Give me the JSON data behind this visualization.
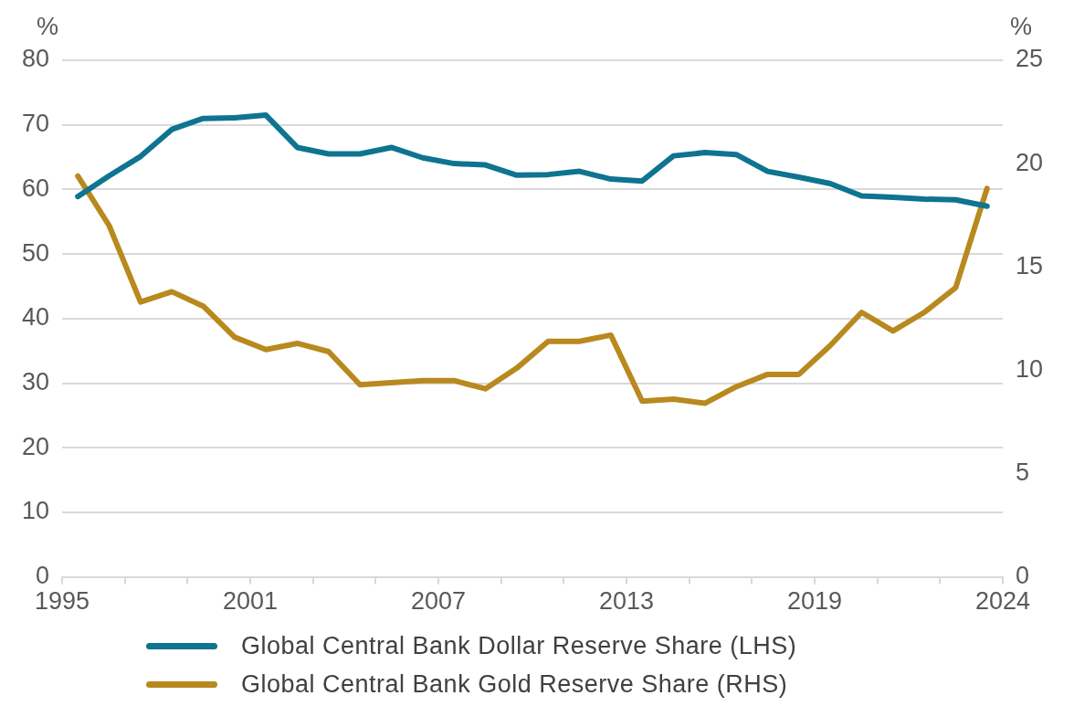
{
  "chart_data": {
    "type": "line",
    "ylabel": "%",
    "y2label": "%",
    "x": [
      1995,
      1996,
      1997,
      1998,
      1999,
      2000,
      2001,
      2002,
      2003,
      2004,
      2005,
      2006,
      2007,
      2008,
      2009,
      2010,
      2011,
      2012,
      2013,
      2014,
      2015,
      2016,
      2017,
      2018,
      2019,
      2020,
      2021,
      2022,
      2023,
      2024
    ],
    "series": [
      {
        "name": "Global Central Bank Dollar Reserve Share (LHS)",
        "color": "#0e7490",
        "values": [
          58.9,
          62.1,
          65.1,
          69.3,
          71.0,
          71.1,
          71.5,
          66.5,
          65.5,
          65.5,
          66.5,
          64.9,
          64.0,
          63.8,
          62.2,
          62.3,
          62.8,
          61.6,
          61.3,
          65.2,
          65.7,
          65.4,
          62.8,
          61.9,
          60.9,
          59.0,
          58.8,
          58.5,
          58.4,
          57.4
        ]
      },
      {
        "name": "Global Central Bank Gold Reserve Share (RHS)",
        "color": "#b8891e",
        "axis": "y2",
        "values": [
          19.4,
          17.0,
          13.3,
          13.8,
          13.1,
          11.6,
          11.0,
          11.3,
          10.9,
          9.3,
          9.4,
          9.5,
          9.5,
          9.1,
          10.1,
          11.4,
          11.4,
          11.7,
          8.5,
          8.6,
          8.4,
          9.2,
          9.8,
          9.8,
          11.2,
          12.8,
          11.9,
          12.8,
          14.0,
          18.8
        ]
      }
    ],
    "xlim": [
      1994.5,
      2024.5
    ],
    "xticks": [
      {
        "value": 1994.5,
        "label": "1995"
      },
      {
        "value": 1996.5,
        "label": null
      },
      {
        "value": 1998.5,
        "label": null
      },
      {
        "value": 2000.5,
        "label": "2001"
      },
      {
        "value": 2002.5,
        "label": null
      },
      {
        "value": 2004.5,
        "label": null
      },
      {
        "value": 2006.5,
        "label": "2007"
      },
      {
        "value": 2008.5,
        "label": null
      },
      {
        "value": 2010.5,
        "label": null
      },
      {
        "value": 2012.5,
        "label": "2013"
      },
      {
        "value": 2014.5,
        "label": null
      },
      {
        "value": 2016.5,
        "label": null
      },
      {
        "value": 2018.5,
        "label": "2019"
      },
      {
        "value": 2020.5,
        "label": null
      },
      {
        "value": 2022.5,
        "label": null
      },
      {
        "value": 2024.5,
        "label": "2024"
      }
    ],
    "ylim": [
      0,
      80
    ],
    "yticks": [
      0,
      10,
      20,
      30,
      40,
      50,
      60,
      70,
      80
    ],
    "y2lim": [
      0,
      25
    ],
    "y2ticks": [
      0,
      5,
      10,
      15,
      20,
      25
    ],
    "grid": "y",
    "legend": "bottom",
    "marker": "none",
    "line_style": "solid"
  }
}
